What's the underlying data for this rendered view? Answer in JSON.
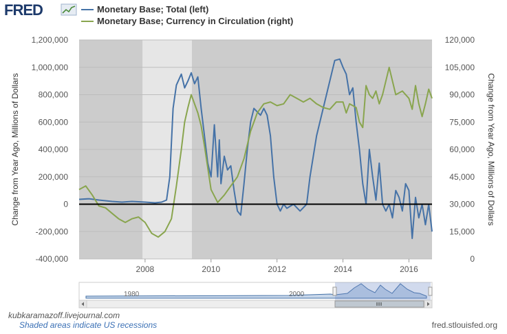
{
  "logo": {
    "text": "FRED",
    "icon": "line-chart-icon"
  },
  "watermark": "kubkaramazoff.livejournal.com",
  "recession_note": "Shaded areas indicate US recessions",
  "source": "fred.stlouisfed.org",
  "navigator": {
    "years": [
      "1980",
      "2000"
    ]
  },
  "colors": {
    "left": "#4572a7",
    "right": "#89a54e",
    "plot_bg": "#cccccc",
    "recession": "#e6e6e6",
    "zero_line": "#000000"
  },
  "chart_data": {
    "type": "line",
    "x_range": [
      2006.0,
      2016.7
    ],
    "x_ticks": [
      "2008",
      "2010",
      "2012",
      "2014",
      "2016"
    ],
    "x_tick_values": [
      2008,
      2010,
      2012,
      2014,
      2016
    ],
    "y_left": {
      "label": "Change from Year Ago, Millions of Dollars",
      "range": [
        -400000,
        1200000
      ],
      "ticks": [
        "-400,000",
        "-200,000",
        "0",
        "200,000",
        "400,000",
        "600,000",
        "800,000",
        "1,000,000",
        "1,200,000"
      ],
      "tick_values": [
        -400000,
        -200000,
        0,
        200000,
        400000,
        600000,
        800000,
        1000000,
        1200000
      ]
    },
    "y_right": {
      "label": "Change from Year Ago, Millions of Dollars",
      "range": [
        0,
        120000
      ],
      "ticks": [
        "0",
        "15,000",
        "30,000",
        "45,000",
        "60,000",
        "75,000",
        "90,000",
        "105,000",
        "120,000"
      ],
      "tick_values": [
        0,
        15000,
        30000,
        45000,
        60000,
        75000,
        90000,
        105000,
        120000
      ]
    },
    "recessions": [
      [
        2007.92,
        2009.42
      ]
    ],
    "series": [
      {
        "name": "Monetary Base; Total (left)",
        "axis": "left",
        "x": [
          2006.0,
          2006.3,
          2006.6,
          2007.0,
          2007.3,
          2007.6,
          2008.0,
          2008.3,
          2008.5,
          2008.65,
          2008.75,
          2008.85,
          2008.95,
          2009.1,
          2009.2,
          2009.3,
          2009.4,
          2009.5,
          2009.6,
          2009.7,
          2009.8,
          2009.9,
          2010.0,
          2010.1,
          2010.2,
          2010.25,
          2010.3,
          2010.4,
          2010.5,
          2010.6,
          2010.7,
          2010.8,
          2010.9,
          2011.0,
          2011.1,
          2011.2,
          2011.3,
          2011.5,
          2011.6,
          2011.7,
          2011.8,
          2011.9,
          2012.0,
          2012.1,
          2012.2,
          2012.3,
          2012.5,
          2012.7,
          2012.9,
          2013.0,
          2013.2,
          2013.4,
          2013.6,
          2013.75,
          2013.9,
          2014.0,
          2014.1,
          2014.2,
          2014.3,
          2014.4,
          2014.5,
          2014.6,
          2014.7,
          2014.8,
          2014.9,
          2015.0,
          2015.1,
          2015.2,
          2015.3,
          2015.4,
          2015.5,
          2015.6,
          2015.7,
          2015.8,
          2015.9,
          2016.0,
          2016.1,
          2016.2,
          2016.3,
          2016.4,
          2016.5,
          2016.6,
          2016.7
        ],
        "values": [
          35000,
          40000,
          30000,
          20000,
          15000,
          20000,
          15000,
          10000,
          15000,
          30000,
          200000,
          700000,
          870000,
          950000,
          850000,
          900000,
          960000,
          880000,
          930000,
          700000,
          500000,
          300000,
          200000,
          580000,
          200000,
          470000,
          150000,
          350000,
          250000,
          280000,
          100000,
          -50000,
          -80000,
          150000,
          400000,
          600000,
          700000,
          650000,
          700000,
          650000,
          500000,
          200000,
          0,
          -50000,
          0,
          -30000,
          0,
          -50000,
          0,
          200000,
          500000,
          700000,
          900000,
          1050000,
          1060000,
          1000000,
          950000,
          800000,
          850000,
          600000,
          400000,
          150000,
          0,
          400000,
          200000,
          30000,
          300000,
          0,
          -50000,
          0,
          -100000,
          100000,
          50000,
          -50000,
          150000,
          100000,
          -250000,
          50000,
          -100000,
          0,
          -150000,
          0,
          -200000
        ]
      },
      {
        "name": "Monetary Base; Currency in Circulation (right)",
        "axis": "right",
        "x": [
          2006.0,
          2006.2,
          2006.4,
          2006.6,
          2006.8,
          2007.0,
          2007.2,
          2007.4,
          2007.6,
          2007.8,
          2008.0,
          2008.2,
          2008.4,
          2008.6,
          2008.8,
          2008.95,
          2009.1,
          2009.2,
          2009.3,
          2009.4,
          2009.5,
          2009.6,
          2009.7,
          2009.8,
          2009.9,
          2010.0,
          2010.2,
          2010.4,
          2010.6,
          2010.8,
          2011.0,
          2011.2,
          2011.4,
          2011.6,
          2011.8,
          2012.0,
          2012.2,
          2012.4,
          2012.6,
          2012.8,
          2013.0,
          2013.2,
          2013.4,
          2013.6,
          2013.8,
          2014.0,
          2014.1,
          2014.2,
          2014.3,
          2014.4,
          2014.5,
          2014.6,
          2014.7,
          2014.8,
          2014.9,
          2015.0,
          2015.1,
          2015.2,
          2015.4,
          2015.6,
          2015.8,
          2016.0,
          2016.1,
          2016.2,
          2016.3,
          2016.4,
          2016.5,
          2016.6,
          2016.7
        ],
        "values": [
          38000,
          40000,
          35000,
          29000,
          28000,
          25000,
          22000,
          20000,
          22000,
          23000,
          20000,
          14000,
          12000,
          15000,
          22000,
          40000,
          60000,
          75000,
          83000,
          90000,
          85000,
          80000,
          73000,
          62000,
          50000,
          38000,
          31000,
          35000,
          40000,
          45000,
          55000,
          70000,
          80000,
          85000,
          86000,
          84000,
          85000,
          90000,
          88000,
          86000,
          88000,
          85000,
          83000,
          82000,
          86000,
          86000,
          80000,
          85000,
          84000,
          83000,
          75000,
          72000,
          95000,
          90000,
          88000,
          92000,
          85000,
          90000,
          105000,
          90000,
          92000,
          88000,
          82000,
          95000,
          85000,
          78000,
          85000,
          93000,
          88000
        ]
      }
    ]
  }
}
